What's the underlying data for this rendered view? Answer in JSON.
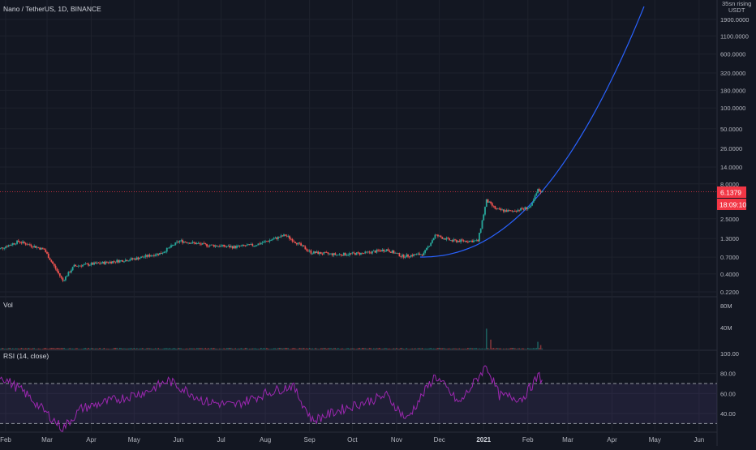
{
  "chart_data": [
    {
      "type": "candlestick",
      "title": "Nano / TetherUS, 1D, BINANCE",
      "y_scale": "log",
      "y_tick_labels": [
        "1900.0000",
        "1100.0000",
        "600.0000",
        "320.0000",
        "180.0000",
        "100.0000",
        "50.0000",
        "26.0000",
        "14.0000",
        "8.0000",
        "2.5000",
        "1.3000",
        "0.7000",
        "0.4000",
        "0.2200"
      ],
      "y_ticks": [
        1900,
        1100,
        600,
        320,
        180,
        100,
        50,
        26,
        14,
        8,
        2.5,
        1.3,
        0.7,
        0.4,
        0.22
      ],
      "x_tick_labels": [
        "Feb",
        "Mar",
        "Apr",
        "May",
        "Jun",
        "Jul",
        "Aug",
        "Sep",
        "Oct",
        "Nov",
        "Dec",
        "2021",
        "Feb",
        "Mar",
        "Apr",
        "May",
        "Jun"
      ],
      "x_ticks": [
        "2020-02-01",
        "2020-03-01",
        "2020-04-01",
        "2020-05-01",
        "2020-06-01",
        "2020-07-01",
        "2020-08-01",
        "2020-09-01",
        "2020-10-01",
        "2020-11-01",
        "2020-12-01",
        "2021-01-01",
        "2021-02-01",
        "2021-03-01",
        "2021-04-01",
        "2021-05-01",
        "2021-06-01"
      ],
      "close_key_points": [
        {
          "date": "2020-01-25",
          "close": 0.88
        },
        {
          "date": "2020-02-10",
          "close": 1.18
        },
        {
          "date": "2020-02-28",
          "close": 0.9
        },
        {
          "date": "2020-03-12",
          "close": 0.32
        },
        {
          "date": "2020-03-20",
          "close": 0.52
        },
        {
          "date": "2020-04-10",
          "close": 0.58
        },
        {
          "date": "2020-05-01",
          "close": 0.66
        },
        {
          "date": "2020-05-20",
          "close": 0.8
        },
        {
          "date": "2020-06-02",
          "close": 1.2
        },
        {
          "date": "2020-06-20",
          "close": 1.05
        },
        {
          "date": "2020-07-10",
          "close": 0.98
        },
        {
          "date": "2020-07-25",
          "close": 1.05
        },
        {
          "date": "2020-08-15",
          "close": 1.45
        },
        {
          "date": "2020-09-02",
          "close": 0.82
        },
        {
          "date": "2020-09-20",
          "close": 0.76
        },
        {
          "date": "2020-10-10",
          "close": 0.8
        },
        {
          "date": "2020-10-25",
          "close": 0.9
        },
        {
          "date": "2020-11-05",
          "close": 0.72
        },
        {
          "date": "2020-11-20",
          "close": 0.78
        },
        {
          "date": "2020-11-28",
          "close": 1.45
        },
        {
          "date": "2020-12-10",
          "close": 1.2
        },
        {
          "date": "2020-12-28",
          "close": 1.2
        },
        {
          "date": "2021-01-03",
          "close": 4.6
        },
        {
          "date": "2021-01-10",
          "close": 3.4
        },
        {
          "date": "2021-01-20",
          "close": 3.2
        },
        {
          "date": "2021-02-03",
          "close": 3.7
        },
        {
          "date": "2021-02-08",
          "close": 6.5
        },
        {
          "date": "2021-02-11",
          "close": 6.1379
        }
      ],
      "projection_curve_label": "",
      "last_price": "6.1379",
      "countdown": "18:09:10",
      "axis_currency": "USDT",
      "axis_note": "35sn rising"
    },
    {
      "type": "bar",
      "title": "Vol",
      "y_tick_labels": [
        "80M",
        "40M"
      ],
      "y_ticks": [
        80000000,
        40000000
      ],
      "spikes": [
        {
          "date": "2021-01-03",
          "volume": 38000000
        },
        {
          "date": "2021-01-06",
          "volume": 18000000
        },
        {
          "date": "2021-02-08",
          "volume": 14000000
        },
        {
          "date": "2021-02-10",
          "volume": 8000000
        }
      ],
      "typical_volume": 2000000
    },
    {
      "type": "line",
      "title": "RSI (14, close)",
      "y_tick_labels": [
        "100.00",
        "80.00",
        "60.00",
        "40.00"
      ],
      "y_ticks": [
        100,
        80,
        60,
        40
      ],
      "upper_band": 70,
      "lower_band": 30,
      "key_points": [
        {
          "date": "2020-01-28",
          "rsi": 78
        },
        {
          "date": "2020-02-15",
          "rsi": 60
        },
        {
          "date": "2020-03-12",
          "rsi": 25
        },
        {
          "date": "2020-03-25",
          "rsi": 45
        },
        {
          "date": "2020-05-10",
          "rsi": 62
        },
        {
          "date": "2020-05-25",
          "rsi": 73
        },
        {
          "date": "2020-06-20",
          "rsi": 52
        },
        {
          "date": "2020-07-10",
          "rsi": 48
        },
        {
          "date": "2020-08-01",
          "rsi": 60
        },
        {
          "date": "2020-08-20",
          "rsi": 68
        },
        {
          "date": "2020-09-03",
          "rsi": 33
        },
        {
          "date": "2020-09-25",
          "rsi": 45
        },
        {
          "date": "2020-10-25",
          "rsi": 58
        },
        {
          "date": "2020-11-08",
          "rsi": 34
        },
        {
          "date": "2020-11-28",
          "rsi": 78
        },
        {
          "date": "2020-12-15",
          "rsi": 50
        },
        {
          "date": "2021-01-03",
          "rsi": 88
        },
        {
          "date": "2021-01-12",
          "rsi": 58
        },
        {
          "date": "2021-01-28",
          "rsi": 55
        },
        {
          "date": "2021-02-09",
          "rsi": 78
        },
        {
          "date": "2021-02-11",
          "rsi": 72
        }
      ]
    }
  ]
}
